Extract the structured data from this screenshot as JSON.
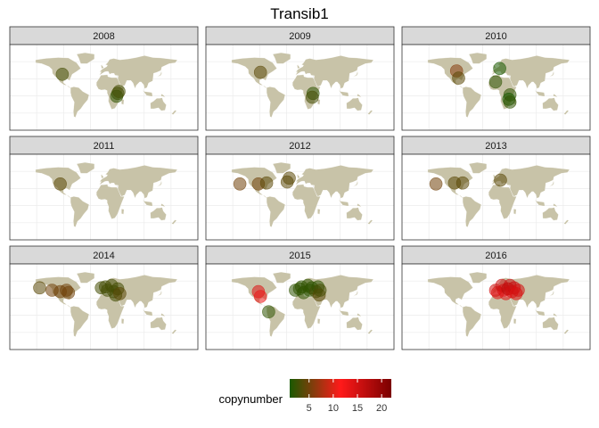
{
  "chart_data": {
    "type": "scatter",
    "title": "Transib1",
    "xlabel": "",
    "ylabel": "",
    "grid": true,
    "background": "world map",
    "facets": [
      "2008",
      "2009",
      "2010",
      "2011",
      "2012",
      "2013",
      "2014",
      "2015",
      "2016"
    ],
    "series": [
      {
        "year": "2008",
        "points": [
          {
            "lon": -100,
            "lat": 38,
            "copynumber": 3
          },
          {
            "lon": 35,
            "lat": -2,
            "copynumber": 3
          },
          {
            "lon": 32,
            "lat": -8,
            "copynumber": 2
          },
          {
            "lon": 38,
            "lat": 2,
            "copynumber": 3
          }
        ]
      },
      {
        "year": "2009",
        "points": [
          {
            "lon": -95,
            "lat": 42,
            "copynumber": 4
          },
          {
            "lon": 33,
            "lat": -2,
            "copynumber": 2
          },
          {
            "lon": 31,
            "lat": -10,
            "copynumber": 3
          }
        ]
      },
      {
        "year": "2010",
        "points": [
          {
            "lon": -95,
            "lat": 45,
            "copynumber": 6
          },
          {
            "lon": -90,
            "lat": 30,
            "copynumber": 4
          },
          {
            "lon": 10,
            "lat": 50,
            "copynumber": 1
          },
          {
            "lon": 0,
            "lat": 22,
            "copynumber": 2
          },
          {
            "lon": 35,
            "lat": -5,
            "copynumber": 2
          },
          {
            "lon": 32,
            "lat": -14,
            "copynumber": 1
          },
          {
            "lon": 35,
            "lat": -20,
            "copynumber": 2
          }
        ]
      },
      {
        "year": "2011",
        "points": [
          {
            "lon": -105,
            "lat": 38,
            "copynumber": 4
          }
        ]
      },
      {
        "year": "2012",
        "points": [
          {
            "lon": -145,
            "lat": 38,
            "copynumber": 5
          },
          {
            "lon": -100,
            "lat": 38,
            "copynumber": 5
          },
          {
            "lon": -80,
            "lat": 40,
            "copynumber": 4
          },
          {
            "lon": -30,
            "lat": 42,
            "copynumber": 4
          },
          {
            "lon": -25,
            "lat": 50,
            "copynumber": 4
          }
        ]
      },
      {
        "year": "2013",
        "points": [
          {
            "lon": -145,
            "lat": 38,
            "copynumber": 5
          },
          {
            "lon": -100,
            "lat": 40,
            "copynumber": 4
          },
          {
            "lon": -80,
            "lat": 40,
            "copynumber": 4
          },
          {
            "lon": 12,
            "lat": 46,
            "copynumber": 4
          }
        ]
      },
      {
        "year": "2014",
        "points": [
          {
            "lon": -155,
            "lat": 50,
            "copynumber": 4
          },
          {
            "lon": -125,
            "lat": 45,
            "copynumber": 5
          },
          {
            "lon": -105,
            "lat": 42,
            "copynumber": 5
          },
          {
            "lon": -90,
            "lat": 45,
            "copynumber": 5
          },
          {
            "lon": -85,
            "lat": 40,
            "copynumber": 5
          },
          {
            "lon": -5,
            "lat": 50,
            "copynumber": 3
          },
          {
            "lon": 5,
            "lat": 52,
            "copynumber": 3
          },
          {
            "lon": 10,
            "lat": 45,
            "copynumber": 3
          },
          {
            "lon": 20,
            "lat": 55,
            "copynumber": 3
          },
          {
            "lon": 25,
            "lat": 42,
            "copynumber": 3
          },
          {
            "lon": 35,
            "lat": 48,
            "copynumber": 3
          },
          {
            "lon": 30,
            "lat": 35,
            "copynumber": 3
          },
          {
            "lon": 40,
            "lat": 38,
            "copynumber": 4
          }
        ]
      },
      {
        "year": "2015",
        "points": [
          {
            "lon": -100,
            "lat": 42,
            "copynumber": 14
          },
          {
            "lon": -95,
            "lat": 32,
            "copynumber": 13
          },
          {
            "lon": -75,
            "lat": 0,
            "copynumber": 2
          },
          {
            "lon": -10,
            "lat": 45,
            "copynumber": 2
          },
          {
            "lon": 0,
            "lat": 48,
            "copynumber": 2
          },
          {
            "lon": 5,
            "lat": 52,
            "copynumber": 2
          },
          {
            "lon": 10,
            "lat": 40,
            "copynumber": 2
          },
          {
            "lon": 20,
            "lat": 55,
            "copynumber": 2
          },
          {
            "lon": 25,
            "lat": 45,
            "copynumber": 2
          },
          {
            "lon": 30,
            "lat": 50,
            "copynumber": 2
          },
          {
            "lon": 40,
            "lat": 42,
            "copynumber": 3
          },
          {
            "lon": 45,
            "lat": 52,
            "copynumber": 2
          },
          {
            "lon": 48,
            "lat": 35,
            "copynumber": 4
          },
          {
            "lon": 50,
            "lat": 45,
            "copynumber": 3
          }
        ]
      },
      {
        "year": "2016",
        "points": [
          {
            "lon": 0,
            "lat": 45,
            "copynumber": 15
          },
          {
            "lon": 5,
            "lat": 40,
            "copynumber": 14
          },
          {
            "lon": 15,
            "lat": 55,
            "copynumber": 16
          },
          {
            "lon": 20,
            "lat": 45,
            "copynumber": 15
          },
          {
            "lon": 25,
            "lat": 38,
            "copynumber": 14
          },
          {
            "lon": 30,
            "lat": 48,
            "copynumber": 17
          },
          {
            "lon": 35,
            "lat": 55,
            "copynumber": 16
          },
          {
            "lon": 40,
            "lat": 42,
            "copynumber": 15
          },
          {
            "lon": 45,
            "lat": 50,
            "copynumber": 16
          },
          {
            "lon": 50,
            "lat": 38,
            "copynumber": 14
          },
          {
            "lon": 55,
            "lat": 45,
            "copynumber": 15
          }
        ]
      }
    ],
    "legend": {
      "title": "copynumber",
      "placement": "bottom",
      "range": [
        1,
        22
      ],
      "ticks": [
        5,
        10,
        15,
        20
      ],
      "colors": [
        "#1a5a00",
        "#ff1a1a",
        "#7a0000"
      ]
    },
    "colors": {
      "land": "#c8c3a8",
      "strip_bg": "#d9d9d9",
      "grid": "#ebebeb",
      "panel_border": "#333333"
    }
  }
}
